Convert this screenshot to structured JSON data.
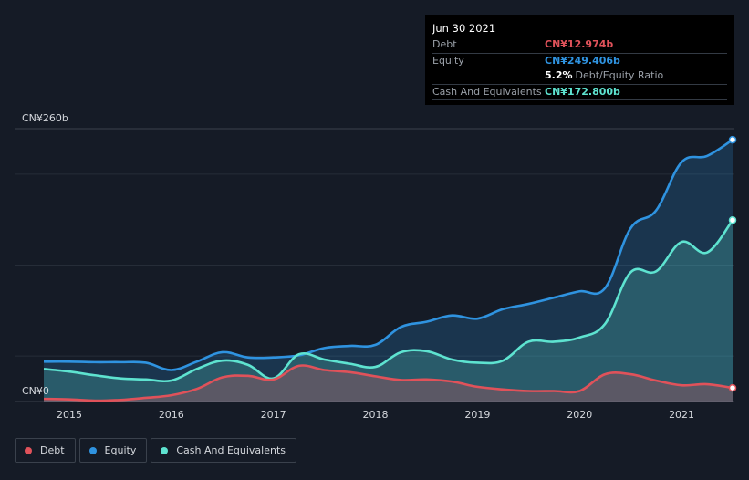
{
  "tooltip": {
    "date": "Jun 30 2021",
    "debt_label": "Debt",
    "debt_value": "CN¥12.974b",
    "equity_label": "Equity",
    "equity_value": "CN¥249.406b",
    "ratio_value": "5.2%",
    "ratio_label": "Debt/Equity Ratio",
    "cash_label": "Cash And Equivalents",
    "cash_value": "CN¥172.800b"
  },
  "legend": [
    {
      "label": "Debt",
      "color": "#e0525a"
    },
    {
      "label": "Equity",
      "color": "#2f93e0"
    },
    {
      "label": "Cash And Equivalents",
      "color": "#5ee3d0"
    }
  ],
  "chart_data": {
    "type": "area",
    "y_tick_labels": [
      "CN¥260b",
      "CN¥0"
    ],
    "ylim": [
      0,
      260
    ],
    "xlim": [
      2014.75,
      2021.5
    ],
    "x_ticks": [
      "2015",
      "2016",
      "2017",
      "2018",
      "2019",
      "2020",
      "2021"
    ],
    "grid": true,
    "legend_position": "bottom-left",
    "series": [
      {
        "name": "Equity",
        "color": "#2f93e0",
        "x": [
          2014.75,
          2015.0,
          2015.25,
          2015.5,
          2015.75,
          2016.0,
          2016.25,
          2016.5,
          2016.75,
          2017.0,
          2017.25,
          2017.5,
          2017.75,
          2018.0,
          2018.25,
          2018.5,
          2018.75,
          2019.0,
          2019.25,
          2019.5,
          2019.75,
          2020.0,
          2020.25,
          2020.5,
          2020.75,
          2021.0,
          2021.25,
          2021.5
        ],
        "values": [
          38,
          38,
          37.5,
          37.5,
          37,
          30,
          38,
          47,
          42,
          42,
          44,
          51,
          53,
          54,
          71,
          76,
          82,
          79,
          88,
          93,
          99,
          105,
          108,
          165,
          182,
          228,
          234,
          249.406
        ]
      },
      {
        "name": "Cash And Equivalents",
        "color": "#5ee3d0",
        "x": [
          2014.75,
          2015.0,
          2015.25,
          2015.5,
          2015.75,
          2016.0,
          2016.25,
          2016.5,
          2016.75,
          2017.0,
          2017.25,
          2017.5,
          2017.75,
          2018.0,
          2018.25,
          2018.5,
          2018.75,
          2019.0,
          2019.25,
          2019.5,
          2019.75,
          2020.0,
          2020.25,
          2020.5,
          2020.75,
          2021.0,
          2021.25,
          2021.5
        ],
        "values": [
          31,
          28.5,
          25,
          22,
          21,
          20,
          31,
          39,
          35,
          22,
          45,
          40,
          36,
          33,
          47,
          48,
          40,
          37,
          39,
          57,
          57,
          61,
          74,
          123,
          124,
          152,
          142,
          172.8
        ]
      },
      {
        "name": "Debt",
        "color": "#e0525a",
        "x": [
          2014.75,
          2015.0,
          2015.25,
          2015.5,
          2015.75,
          2016.0,
          2016.25,
          2016.5,
          2016.75,
          2017.0,
          2017.25,
          2017.5,
          2017.75,
          2018.0,
          2018.25,
          2018.5,
          2018.75,
          2019.0,
          2019.25,
          2019.5,
          2019.75,
          2020.0,
          2020.25,
          2020.5,
          2020.75,
          2021.0,
          2021.25,
          2021.5
        ],
        "values": [
          2.5,
          2,
          0.8,
          1.5,
          3.5,
          6,
          12,
          23,
          24.5,
          21,
          34,
          30,
          28,
          24,
          20.5,
          21,
          19,
          14,
          11.5,
          10,
          10,
          10,
          26,
          26,
          20,
          15.5,
          16.5,
          12.974
        ]
      }
    ]
  }
}
